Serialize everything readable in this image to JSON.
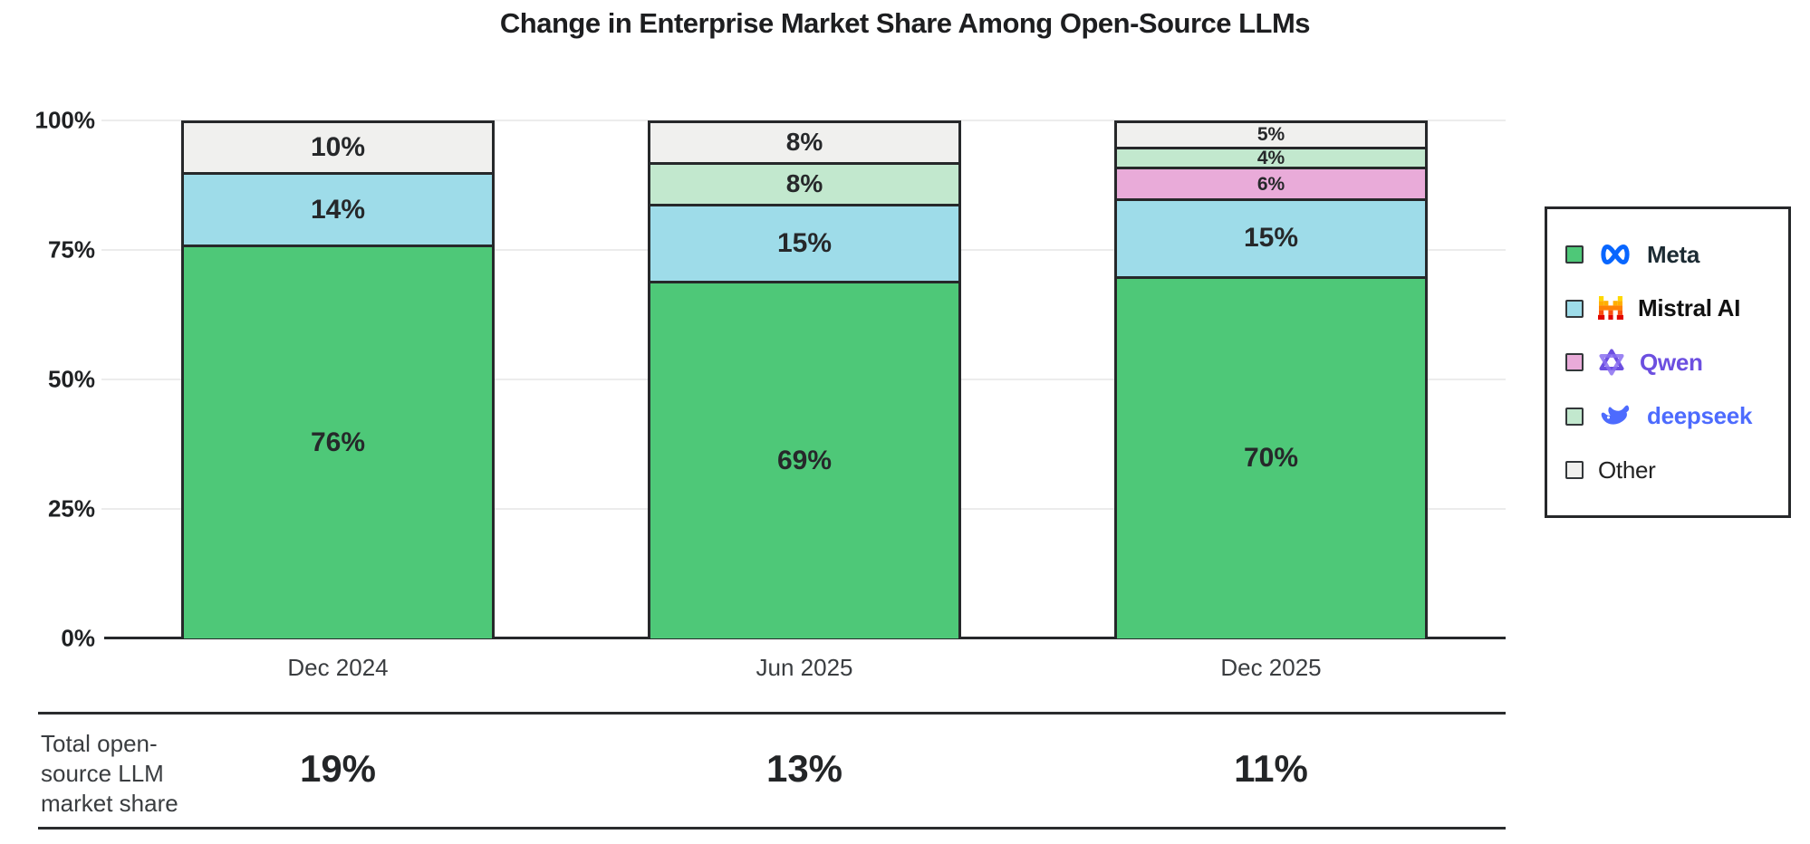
{
  "title": "Change in Enterprise Market Share Among Open-Source LLMs",
  "chart_data": {
    "type": "bar",
    "subtype": "stacked-100-percent",
    "title": "Change in Enterprise Market Share Among Open-Source LLMs",
    "categories": [
      "Dec 2024",
      "Jun 2025",
      "Dec 2025"
    ],
    "series": [
      {
        "name": "Meta",
        "color": "#4ec878",
        "values": [
          76,
          69,
          70
        ]
      },
      {
        "name": "Mistral AI",
        "color": "#9edce9",
        "values": [
          14,
          15,
          15
        ]
      },
      {
        "name": "Qwen",
        "color": "#e9abd9",
        "values": [
          0,
          0,
          6
        ]
      },
      {
        "name": "deepseek",
        "color": "#c2e8ce",
        "values": [
          0,
          8,
          4
        ]
      },
      {
        "name": "Other",
        "color": "#f0f0ee",
        "values": [
          10,
          8,
          5
        ]
      }
    ],
    "stack_order_top_to_bottom": [
      "Other",
      "deepseek",
      "Qwen",
      "Mistral AI",
      "Meta"
    ],
    "bar_label_format": "{value}%",
    "y_ticks": [
      "100%",
      "75%",
      "50%",
      "25%",
      "0%"
    ],
    "ylim": [
      0,
      100
    ],
    "grid": "horizontal",
    "legend_position": "right"
  },
  "legend": {
    "items": [
      {
        "label": "Meta",
        "swatch": "#4ec878",
        "logo": "meta-infinity-icon",
        "label_color": "#1c2b33",
        "weight": "bold"
      },
      {
        "label": "Mistral AI",
        "swatch": "#9edce9",
        "logo": "mistral-pixel-m-icon",
        "label_color": "#111111",
        "weight": "bold"
      },
      {
        "label": "Qwen",
        "swatch": "#e9abd9",
        "logo": "qwen-knot-icon",
        "label_color": "#6c4fe0",
        "weight": "bold"
      },
      {
        "label": "deepseek",
        "swatch": "#c2e8ce",
        "logo": "deepseek-whale-icon",
        "label_color": "#4d6bfe",
        "weight": "bold"
      },
      {
        "label": "Other",
        "swatch": "#f0f0ee",
        "logo": null,
        "label_color": "#222222",
        "weight": "regular"
      }
    ]
  },
  "totals_row": {
    "label_lines": [
      "Total open-",
      "source LLM",
      "market share"
    ],
    "values": [
      "19%",
      "13%",
      "11%"
    ]
  },
  "colors": {
    "axis": "#26282a",
    "grid": "#ececec",
    "bar_border": "#26282a",
    "value_label": "#26282a"
  }
}
